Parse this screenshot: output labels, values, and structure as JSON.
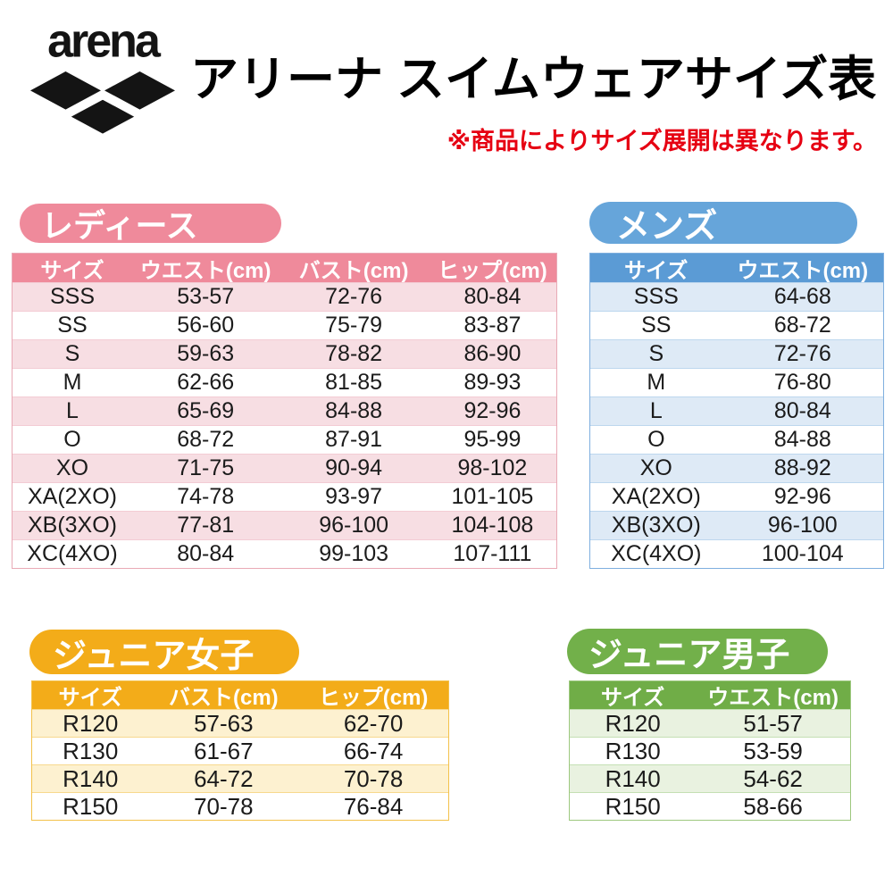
{
  "header": {
    "logo_text": "arena",
    "title": "アリーナ スイムウェアサイズ表",
    "note": "※商品によりサイズ展開は異なります。",
    "note_color": "#e60012"
  },
  "tables": {
    "ladies": {
      "badge": "レディース",
      "theme": {
        "badge_bg": "#ef8a9b",
        "header_bg": "#ef8a9b",
        "stripe_bg": "#f7dee3",
        "border": "#e9aab6",
        "separator": "#f3ccd4"
      },
      "columns": [
        "サイズ",
        "ウエスト(cm)",
        "バスト(cm)",
        "ヒップ(cm)"
      ],
      "col_widths": [
        "22%",
        "27%",
        "27.5%",
        "23.5%"
      ],
      "rows": [
        [
          "SSS",
          "53-57",
          "72-76",
          "80-84"
        ],
        [
          "SS",
          "56-60",
          "75-79",
          "83-87"
        ],
        [
          "S",
          "59-63",
          "78-82",
          "86-90"
        ],
        [
          "M",
          "62-66",
          "81-85",
          "89-93"
        ],
        [
          "L",
          "65-69",
          "84-88",
          "92-96"
        ],
        [
          "O",
          "68-72",
          "87-91",
          "95-99"
        ],
        [
          "XO",
          "71-75",
          "90-94",
          "98-102"
        ],
        [
          "XA(2XO)",
          "74-78",
          "93-97",
          "101-105"
        ],
        [
          "XB(3XO)",
          "77-81",
          "96-100",
          "104-108"
        ],
        [
          "XC(4XO)",
          "80-84",
          "99-103",
          "107-111"
        ]
      ]
    },
    "mens": {
      "badge": "メンズ",
      "theme": {
        "badge_bg": "#66a5da",
        "header_bg": "#5b9bd5",
        "stripe_bg": "#deeaf6",
        "border": "#7fafdf",
        "separator": "#bdd7ee"
      },
      "columns": [
        "サイズ",
        "ウエスト(cm)"
      ],
      "col_widths": [
        "45%",
        "55%"
      ],
      "rows": [
        [
          "SSS",
          "64-68"
        ],
        [
          "SS",
          "68-72"
        ],
        [
          "S",
          "72-76"
        ],
        [
          "M",
          "76-80"
        ],
        [
          "L",
          "80-84"
        ],
        [
          "O",
          "84-88"
        ],
        [
          "XO",
          "88-92"
        ],
        [
          "XA(2XO)",
          "92-96"
        ],
        [
          "XB(3XO)",
          "96-100"
        ],
        [
          "XC(4XO)",
          "100-104"
        ]
      ]
    },
    "junior_girls": {
      "badge": "ジュニア女子",
      "theme": {
        "badge_bg": "#f3ac19",
        "header_bg": "#f3ac19",
        "stripe_bg": "#fdf1d0",
        "border": "#f3c14a",
        "separator": "#f7d98e"
      },
      "columns": [
        "サイズ",
        "バスト(cm)",
        "ヒップ(cm)"
      ],
      "col_widths": [
        "28%",
        "36%",
        "36%"
      ],
      "rows": [
        [
          "R120",
          "57-63",
          "62-70"
        ],
        [
          "R130",
          "61-67",
          "66-74"
        ],
        [
          "R140",
          "64-72",
          "70-78"
        ],
        [
          "R150",
          "70-78",
          "76-84"
        ]
      ]
    },
    "junior_boys": {
      "badge": "ジュニア男子",
      "theme": {
        "badge_bg": "#72b04a",
        "header_bg": "#70ad47",
        "stripe_bg": "#e9f2e0",
        "border": "#9dc87e",
        "separator": "#c5e0b4"
      },
      "columns": [
        "サイズ",
        "ウエスト(cm)"
      ],
      "col_widths": [
        "45%",
        "55%"
      ],
      "rows": [
        [
          "R120",
          "51-57"
        ],
        [
          "R130",
          "53-59"
        ],
        [
          "R140",
          "54-62"
        ],
        [
          "R150",
          "58-66"
        ]
      ]
    }
  }
}
